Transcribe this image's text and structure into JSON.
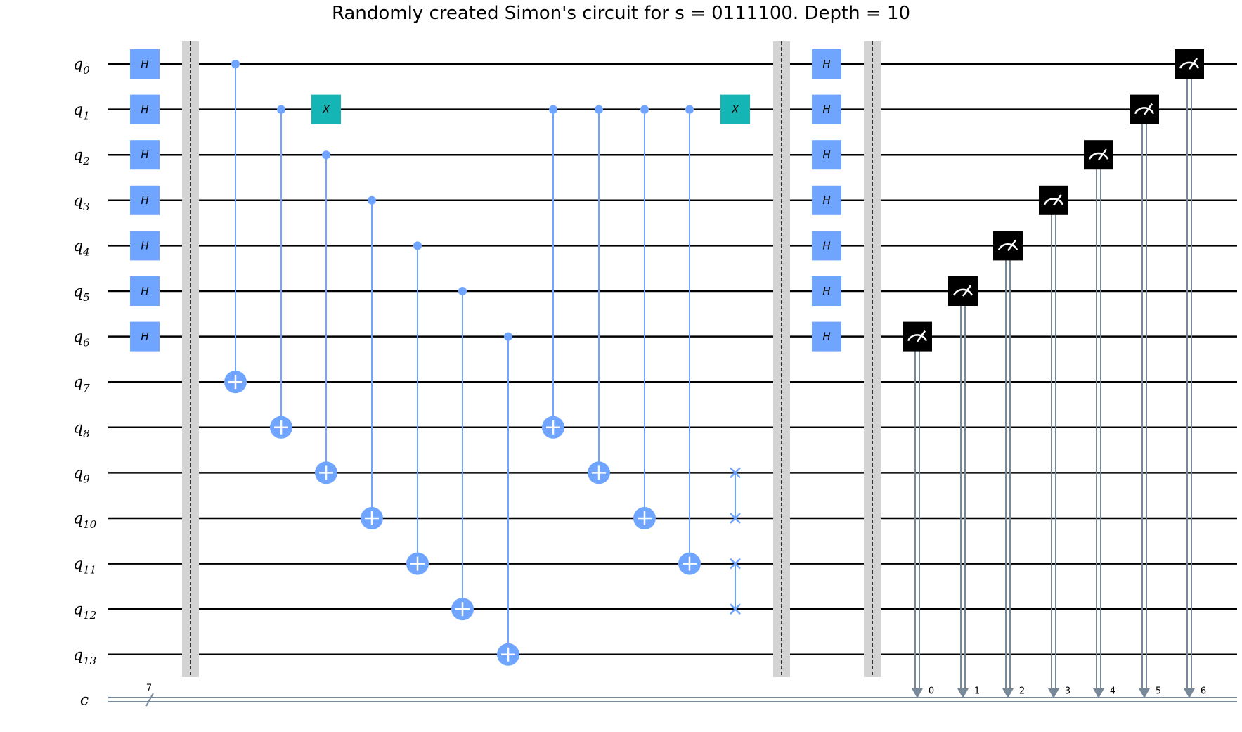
{
  "title": "Randomly created Simon's circuit for s = 0111100. Depth = 10",
  "qubit_prefix": "q",
  "qubits": [
    "0",
    "1",
    "2",
    "3",
    "4",
    "5",
    "6",
    "7",
    "8",
    "9",
    "10",
    "11",
    "12",
    "13"
  ],
  "classical_register": {
    "name": "c",
    "size": "7"
  },
  "gate_labels": {
    "hadamard": "H",
    "pauli_x": "X"
  },
  "measure_bit_labels": [
    "0",
    "1",
    "2",
    "3",
    "4",
    "5",
    "6"
  ],
  "colors": {
    "gate_blue": "#6fa4ff",
    "gate_teal": "#15b5b5",
    "barrier": "#d3d3d3",
    "classical_wire": "#778899",
    "measure_box": "#000000"
  },
  "circuit": {
    "h_layer_1": [
      0,
      1,
      2,
      3,
      4,
      5,
      6
    ],
    "cx_gates": [
      {
        "control": 0,
        "target": 7
      },
      {
        "control": 1,
        "target": 8
      },
      {
        "control": 2,
        "target": 9
      },
      {
        "control": 3,
        "target": 10
      },
      {
        "control": 4,
        "target": 11
      },
      {
        "control": 5,
        "target": 12
      },
      {
        "control": 6,
        "target": 13
      },
      {
        "control": 1,
        "target": 8
      },
      {
        "control": 1,
        "target": 9
      },
      {
        "control": 1,
        "target": 10
      },
      {
        "control": 1,
        "target": 11
      }
    ],
    "x_gates": [
      {
        "qubit": 1
      },
      {
        "qubit": 1
      }
    ],
    "swap_gates": [
      {
        "a": 9,
        "b": 10
      },
      {
        "a": 11,
        "b": 12
      }
    ],
    "h_layer_2": [
      0,
      1,
      2,
      3,
      4,
      5,
      6
    ],
    "measurements": [
      {
        "qubit": 6,
        "bit": 0
      },
      {
        "qubit": 5,
        "bit": 1
      },
      {
        "qubit": 4,
        "bit": 2
      },
      {
        "qubit": 3,
        "bit": 3
      },
      {
        "qubit": 2,
        "bit": 4
      },
      {
        "qubit": 1,
        "bit": 5
      },
      {
        "qubit": 0,
        "bit": 6
      }
    ]
  }
}
